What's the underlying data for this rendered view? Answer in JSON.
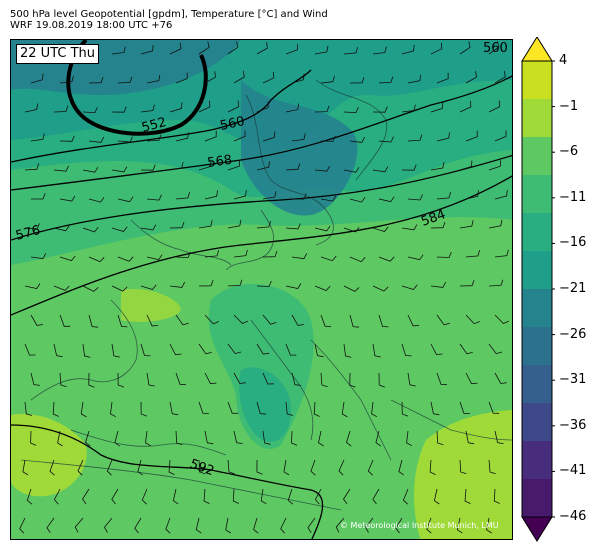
{
  "header": {
    "title_line1": "500 hPa level Geopotential [gpdm], Temperature [°C] and Wind",
    "title_line2": "WRF 19.08.2019 18:00 UTC +76"
  },
  "map": {
    "time_label": "22 UTC Thu",
    "copyright": "© Meteorological Institute Munich, LMU",
    "contour_labels": [
      "552",
      "560",
      "568",
      "576",
      "584",
      "592",
      "560"
    ]
  },
  "colorbar": {
    "ticks": [
      "4",
      "−1",
      "−6",
      "−11",
      "−16",
      "−21",
      "−26",
      "−31",
      "−36",
      "−41",
      "−46"
    ],
    "colors": [
      "#fde725",
      "#c8e020",
      "#a0da39",
      "#5ec962",
      "#3fbc73",
      "#28ae80",
      "#1f9e89",
      "#25838e",
      "#2c728e",
      "#355f8d",
      "#3e4989",
      "#472d7b",
      "#481a6c",
      "#440154"
    ]
  }
}
